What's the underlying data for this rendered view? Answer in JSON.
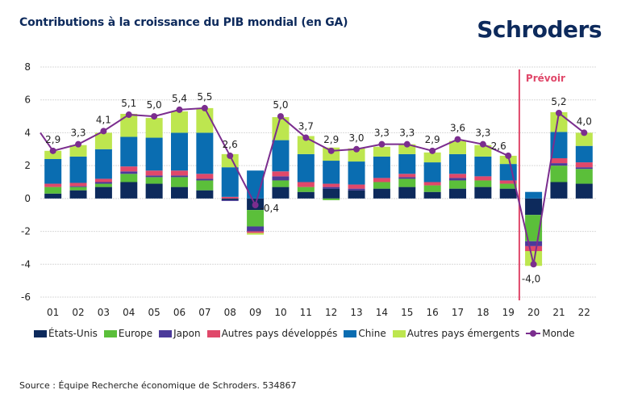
{
  "header": {
    "title": "Contributions à la croissance du PIB mondial (en GA)",
    "logo": "Schroders"
  },
  "footer": {
    "source": "Source : Équipe Recherche économique de Schroders. 534867"
  },
  "chart_data": {
    "type": "bar",
    "stacked": true,
    "title": "Contributions à la croissance du PIB mondial (en GA)",
    "xlabel": "",
    "ylabel": "",
    "ylim": [
      -6,
      8
    ],
    "yticks": [
      -6,
      -4,
      -2,
      0,
      2,
      4,
      6,
      8
    ],
    "ytick_labels": [
      "-6",
      "-4",
      "-2",
      "0",
      "2",
      "4",
      "6",
      "8"
    ],
    "grid": true,
    "legend_position": "bottom",
    "categories": [
      "01",
      "02",
      "03",
      "04",
      "05",
      "06",
      "07",
      "08",
      "09",
      "10",
      "11",
      "12",
      "13",
      "14",
      "15",
      "16",
      "17",
      "18",
      "19",
      "20",
      "21",
      "22"
    ],
    "forecast_marker": {
      "after_category": "19",
      "label": "Prévoir",
      "color": "#e0486a"
    },
    "series": [
      {
        "name": "États-Unis",
        "kind": "bar",
        "color": "#0d2a5c",
        "values": [
          0.3,
          0.5,
          0.7,
          1.0,
          0.9,
          0.7,
          0.5,
          -0.1,
          -0.7,
          0.7,
          0.4,
          0.6,
          0.5,
          0.6,
          0.7,
          0.4,
          0.6,
          0.7,
          0.6,
          -1.0,
          1.0,
          0.9
        ]
      },
      {
        "name": "Europe",
        "kind": "bar",
        "color": "#5bbf3a",
        "values": [
          0.4,
          0.2,
          0.2,
          0.5,
          0.4,
          0.6,
          0.6,
          0.0,
          -1.0,
          0.4,
          0.3,
          -0.1,
          0.0,
          0.4,
          0.5,
          0.4,
          0.5,
          0.4,
          0.3,
          -1.6,
          1.0,
          0.9
        ]
      },
      {
        "name": "Japon",
        "kind": "bar",
        "color": "#4b3a9a",
        "values": [
          0.0,
          0.05,
          0.1,
          0.15,
          0.1,
          0.1,
          0.1,
          -0.05,
          -0.3,
          0.25,
          0.0,
          0.1,
          0.1,
          0.0,
          0.1,
          0.0,
          0.15,
          0.0,
          0.0,
          -0.3,
          0.15,
          0.1
        ]
      },
      {
        "name": "Autres pays développés",
        "kind": "bar",
        "color": "#e0486a",
        "values": [
          0.2,
          0.2,
          0.2,
          0.3,
          0.3,
          0.3,
          0.3,
          0.1,
          -0.1,
          0.3,
          0.3,
          0.2,
          0.25,
          0.25,
          0.2,
          0.2,
          0.25,
          0.25,
          0.2,
          -0.3,
          0.3,
          0.3
        ]
      },
      {
        "name": "Chine",
        "kind": "bar",
        "color": "#0a6db1",
        "values": [
          1.5,
          1.6,
          1.8,
          1.8,
          2.0,
          2.3,
          2.5,
          1.8,
          1.7,
          1.9,
          1.7,
          1.4,
          1.4,
          1.3,
          1.2,
          1.2,
          1.2,
          1.2,
          1.0,
          0.4,
          1.6,
          1.0
        ]
      },
      {
        "name": "Autres pays émergents",
        "kind": "bar",
        "color": "#bde64f",
        "values": [
          0.5,
          0.7,
          1.0,
          1.4,
          1.2,
          1.3,
          1.5,
          0.8,
          -0.1,
          1.4,
          1.1,
          0.8,
          0.8,
          0.6,
          0.6,
          0.6,
          0.8,
          0.7,
          0.5,
          -0.9,
          1.2,
          0.8
        ]
      },
      {
        "name": "Monde",
        "kind": "line",
        "color": "#7b2d8e",
        "values": [
          2.9,
          3.3,
          4.1,
          5.1,
          5.0,
          5.4,
          5.5,
          2.6,
          -0.4,
          5.0,
          3.7,
          2.9,
          3.0,
          3.3,
          3.3,
          2.9,
          3.6,
          3.3,
          2.6,
          -4.0,
          5.2,
          4.0
        ],
        "start_value": 4.0,
        "data_labels": [
          "2,9",
          "3,3",
          "4,1",
          "5,1",
          "5,0",
          "5,4",
          "5,5",
          "2,6",
          "-0,4",
          "5,0",
          "3,7",
          "2,9",
          "3,0",
          "3,3",
          "3,3",
          "2,9",
          "3,6",
          "3,3",
          "2,6",
          "-4,0",
          "5,2",
          "4,0"
        ]
      }
    ]
  }
}
